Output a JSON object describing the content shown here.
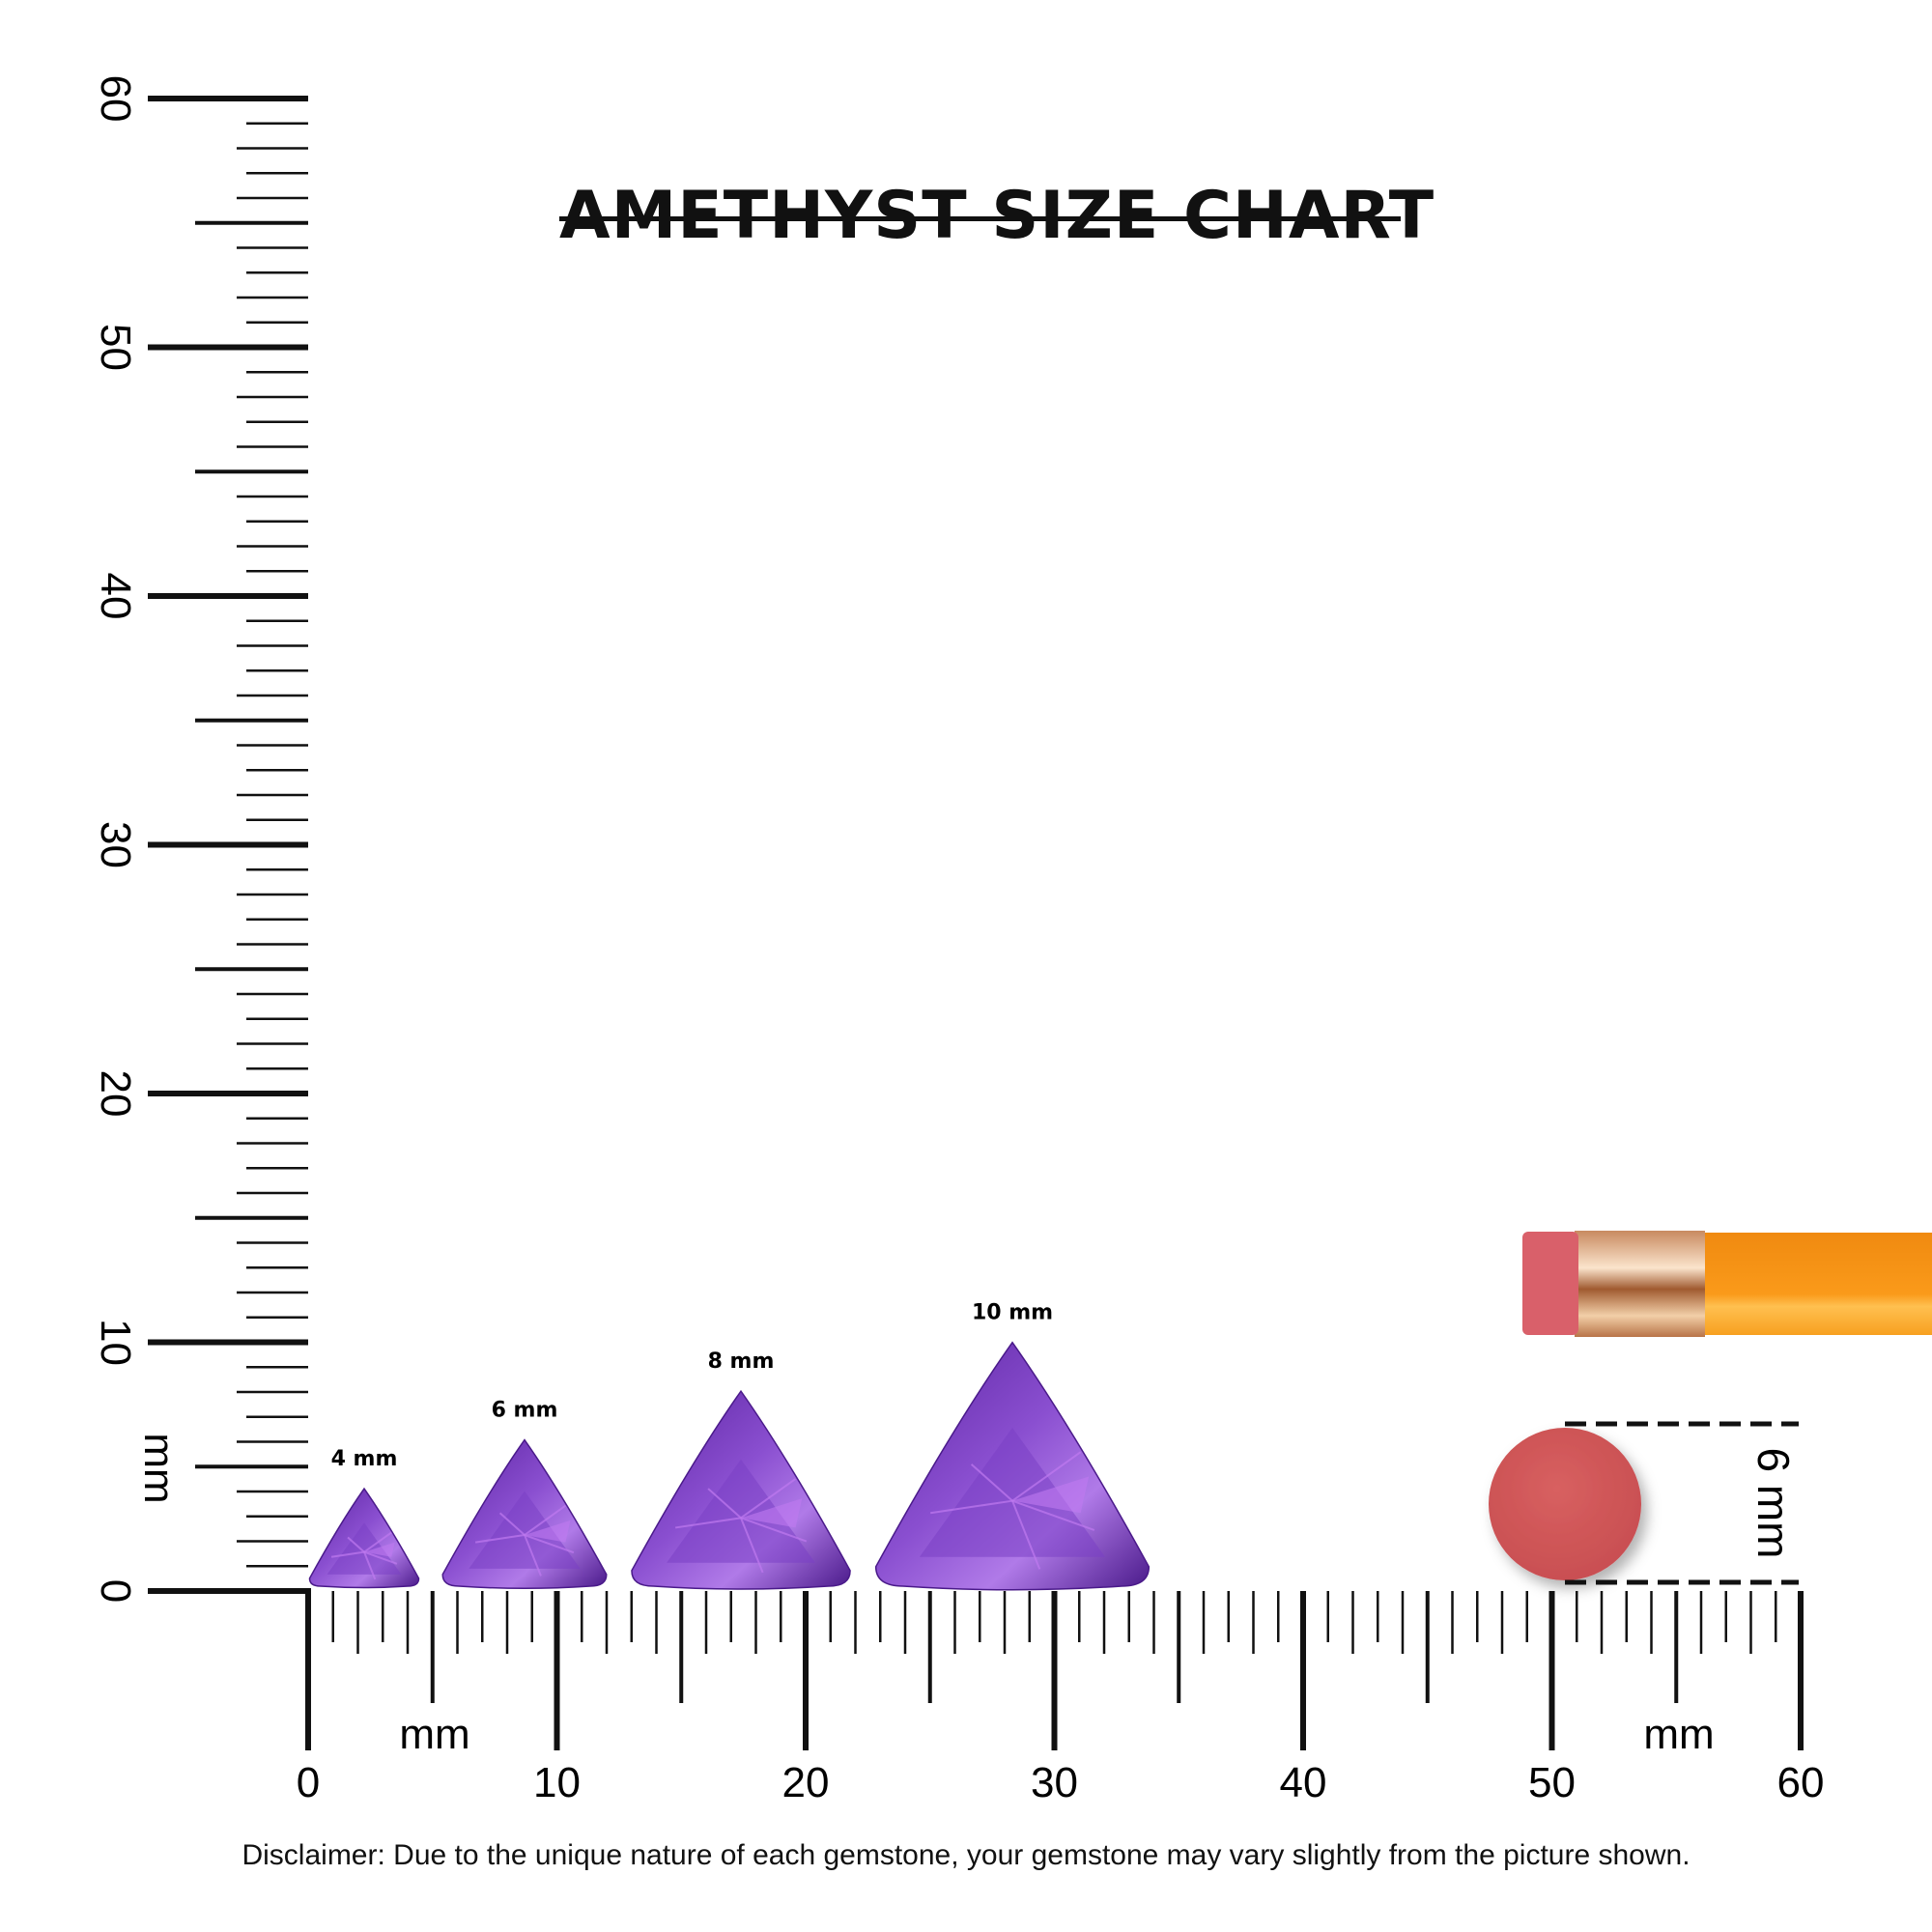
{
  "title": "AMETHYST SIZE CHART",
  "disclaimer": "Disclaimer: Due to the unique nature of each gemstone, your gemstone may vary slightly from the picture shown.",
  "chart_data": {
    "type": "size-comparison",
    "unit": "mm",
    "x_axis": {
      "label": "mm",
      "range": [
        0,
        60
      ],
      "tick_labels": [
        "0",
        "10",
        "20",
        "30",
        "40",
        "50",
        "60"
      ]
    },
    "y_axis": {
      "label": "mm",
      "range": [
        0,
        60
      ],
      "tick_labels": [
        "0",
        "10",
        "20",
        "30",
        "40",
        "50",
        "60"
      ]
    },
    "gems": [
      {
        "label": "4 mm",
        "size": 4,
        "shape": "trillion"
      },
      {
        "label": "6 mm",
        "size": 6,
        "shape": "trillion"
      },
      {
        "label": "8 mm",
        "size": 8,
        "shape": "trillion"
      },
      {
        "label": "10 mm",
        "size": 10,
        "shape": "trillion"
      }
    ],
    "reference": {
      "object": "pencil-eraser",
      "label": "6 mm",
      "size": 6
    }
  },
  "colors": {
    "gem": "#7a3fc4",
    "gem_dark": "#4a1a8a",
    "gem_light": "#c07af0",
    "eraser": "#d45a5a",
    "pencil": "#f7931e",
    "ferrule": "#d9a27a",
    "ruler": "#111111"
  }
}
